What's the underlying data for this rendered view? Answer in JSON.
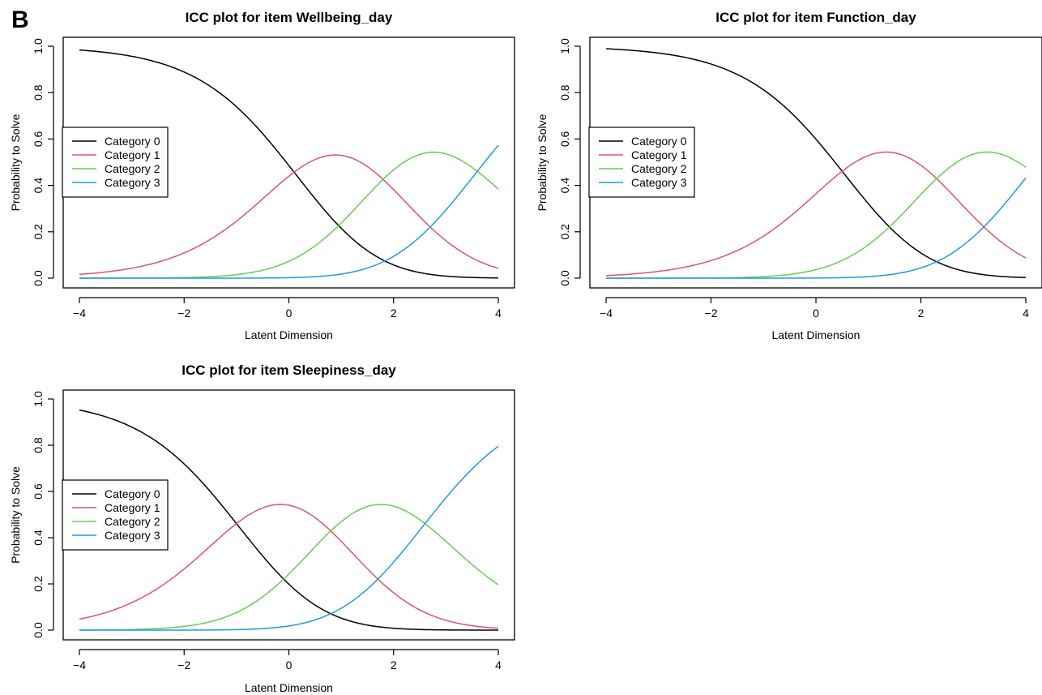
{
  "figure": {
    "panel_label": "B"
  },
  "chart_data": [
    {
      "type": "line",
      "title": "ICC plot for item Wellbeing_day",
      "xlabel": "Latent Dimension",
      "ylabel": "Probability to Solve",
      "xlim": [
        -4,
        4
      ],
      "ylim": [
        0,
        1
      ],
      "xticks": [
        "−4",
        "−2",
        "0",
        "2",
        "4"
      ],
      "yticks": [
        "0.0",
        "0.2",
        "0.4",
        "0.6",
        "0.8",
        "1.0"
      ],
      "legend_position": "left",
      "model": {
        "kind": "partial-credit",
        "a": 1,
        "thresholds": [
          0.1,
          1.8,
          3.6
        ]
      },
      "series": [
        {
          "name": "Category 0",
          "color": "#000000"
        },
        {
          "name": "Category 1",
          "color": "#DF536B"
        },
        {
          "name": "Category 2",
          "color": "#61D04F"
        },
        {
          "name": "Category 3",
          "color": "#2297E6"
        }
      ]
    },
    {
      "type": "line",
      "title": "ICC plot for item Function_day",
      "xlabel": "Latent Dimension",
      "ylabel": "Probability to Solve",
      "xlim": [
        -4,
        4
      ],
      "ylim": [
        0,
        1
      ],
      "xticks": [
        "−4",
        "−2",
        "0",
        "2",
        "4"
      ],
      "yticks": [
        "0.0",
        "0.2",
        "0.4",
        "0.6",
        "0.8",
        "1.0"
      ],
      "legend_position": "left",
      "model": {
        "kind": "partial-credit",
        "a": 1,
        "thresholds": [
          0.5,
          2.3,
          4.1
        ]
      },
      "series": [
        {
          "name": "Category 0",
          "color": "#000000"
        },
        {
          "name": "Category 1",
          "color": "#DF536B"
        },
        {
          "name": "Category 2",
          "color": "#61D04F"
        },
        {
          "name": "Category 3",
          "color": "#2297E6"
        }
      ]
    },
    {
      "type": "line",
      "title": "ICC plot for item Sleepiness_day",
      "xlabel": "Latent Dimension",
      "ylabel": "Probability to Solve",
      "xlim": [
        -4,
        4
      ],
      "ylim": [
        0,
        1
      ],
      "xticks": [
        "−4",
        "−2",
        "0",
        "2",
        "4"
      ],
      "yticks": [
        "0.0",
        "0.2",
        "0.4",
        "0.6",
        "0.8",
        "1.0"
      ],
      "legend_position": "left",
      "model": {
        "kind": "partial-credit",
        "a": 1,
        "thresholds": [
          -1.0,
          0.8,
          2.6
        ]
      },
      "series": [
        {
          "name": "Category 0",
          "color": "#000000"
        },
        {
          "name": "Category 1",
          "color": "#DF536B"
        },
        {
          "name": "Category 2",
          "color": "#61D04F"
        },
        {
          "name": "Category 3",
          "color": "#2297E6"
        }
      ]
    }
  ]
}
